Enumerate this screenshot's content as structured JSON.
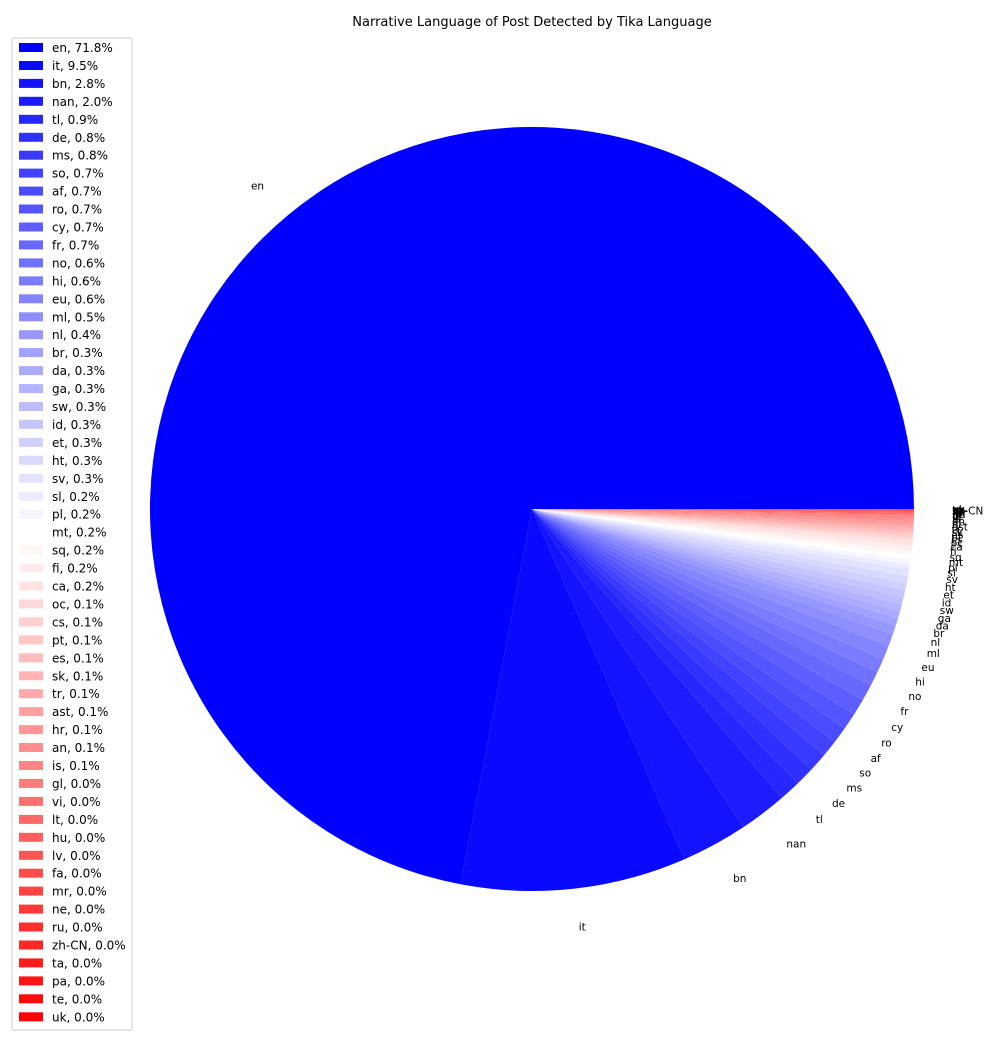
{
  "chart_data": {
    "type": "pie",
    "title": "Narrative Language of Post Detected by Tika Language",
    "legend_position": "left",
    "color_start": "#0000ff",
    "color_mid": "#ffffff",
    "color_end": "#ff0000",
    "slices": [
      {
        "label": "en",
        "legend": "en, 71.8%",
        "value": 71.8
      },
      {
        "label": "it",
        "legend": "it, 9.5%",
        "value": 9.5
      },
      {
        "label": "bn",
        "legend": "bn, 2.8%",
        "value": 2.8
      },
      {
        "label": "nan",
        "legend": "nan, 2.0%",
        "value": 2.0
      },
      {
        "label": "tl",
        "legend": "tl, 0.9%",
        "value": 0.9
      },
      {
        "label": "de",
        "legend": "de, 0.8%",
        "value": 0.8
      },
      {
        "label": "ms",
        "legend": "ms, 0.8%",
        "value": 0.8
      },
      {
        "label": "so",
        "legend": "so, 0.7%",
        "value": 0.7
      },
      {
        "label": "af",
        "legend": "af, 0.7%",
        "value": 0.7
      },
      {
        "label": "ro",
        "legend": "ro, 0.7%",
        "value": 0.7
      },
      {
        "label": "cy",
        "legend": "cy, 0.7%",
        "value": 0.7
      },
      {
        "label": "fr",
        "legend": "fr, 0.7%",
        "value": 0.7
      },
      {
        "label": "no",
        "legend": "no, 0.6%",
        "value": 0.6
      },
      {
        "label": "hi",
        "legend": "hi, 0.6%",
        "value": 0.6
      },
      {
        "label": "eu",
        "legend": "eu, 0.6%",
        "value": 0.6
      },
      {
        "label": "ml",
        "legend": "ml, 0.5%",
        "value": 0.5
      },
      {
        "label": "nl",
        "legend": "nl, 0.4%",
        "value": 0.4
      },
      {
        "label": "br",
        "legend": "br, 0.3%",
        "value": 0.3
      },
      {
        "label": "da",
        "legend": "da, 0.3%",
        "value": 0.3
      },
      {
        "label": "ga",
        "legend": "ga, 0.3%",
        "value": 0.3
      },
      {
        "label": "sw",
        "legend": "sw, 0.3%",
        "value": 0.3
      },
      {
        "label": "id",
        "legend": "id, 0.3%",
        "value": 0.3
      },
      {
        "label": "et",
        "legend": "et, 0.3%",
        "value": 0.3
      },
      {
        "label": "ht",
        "legend": "ht, 0.3%",
        "value": 0.3
      },
      {
        "label": "sv",
        "legend": "sv, 0.3%",
        "value": 0.3
      },
      {
        "label": "sl",
        "legend": "sl, 0.2%",
        "value": 0.2
      },
      {
        "label": "pl",
        "legend": "pl, 0.2%",
        "value": 0.2
      },
      {
        "label": "mt",
        "legend": "mt, 0.2%",
        "value": 0.2
      },
      {
        "label": "sq",
        "legend": "sq, 0.2%",
        "value": 0.2
      },
      {
        "label": "fi",
        "legend": "fi, 0.2%",
        "value": 0.2
      },
      {
        "label": "ca",
        "legend": "ca, 0.2%",
        "value": 0.2
      },
      {
        "label": "oc",
        "legend": "oc, 0.1%",
        "value": 0.1
      },
      {
        "label": "cs",
        "legend": "cs, 0.1%",
        "value": 0.1
      },
      {
        "label": "pt",
        "legend": "pt, 0.1%",
        "value": 0.1
      },
      {
        "label": "es",
        "legend": "es, 0.1%",
        "value": 0.1
      },
      {
        "label": "sk",
        "legend": "sk, 0.1%",
        "value": 0.1
      },
      {
        "label": "tr",
        "legend": "tr, 0.1%",
        "value": 0.1
      },
      {
        "label": "ast",
        "legend": "ast, 0.1%",
        "value": 0.1
      },
      {
        "label": "hr",
        "legend": "hr, 0.1%",
        "value": 0.1
      },
      {
        "label": "an",
        "legend": "an, 0.1%",
        "value": 0.1
      },
      {
        "label": "is",
        "legend": "is, 0.1%",
        "value": 0.1
      },
      {
        "label": "gl",
        "legend": "gl, 0.0%",
        "value": 0.04
      },
      {
        "label": "vi",
        "legend": "vi, 0.0%",
        "value": 0.04
      },
      {
        "label": "lt",
        "legend": "lt, 0.0%",
        "value": 0.03
      },
      {
        "label": "hu",
        "legend": "hu, 0.0%",
        "value": 0.03
      },
      {
        "label": "lv",
        "legend": "lv, 0.0%",
        "value": 0.03
      },
      {
        "label": "fa",
        "legend": "fa, 0.0%",
        "value": 0.02
      },
      {
        "label": "mr",
        "legend": "mr, 0.0%",
        "value": 0.02
      },
      {
        "label": "ne",
        "legend": "ne, 0.0%",
        "value": 0.02
      },
      {
        "label": "ru",
        "legend": "ru, 0.0%",
        "value": 0.02
      },
      {
        "label": "zh-CN",
        "legend": "zh-CN, 0.0%",
        "value": 0.02
      },
      {
        "label": "ta",
        "legend": "ta, 0.0%",
        "value": 0.01
      },
      {
        "label": "pa",
        "legend": "pa, 0.0%",
        "value": 0.01
      },
      {
        "label": "te",
        "legend": "te, 0.0%",
        "value": 0.01
      },
      {
        "label": "uk",
        "legend": "uk, 0.0%",
        "value": 0.01
      }
    ]
  }
}
